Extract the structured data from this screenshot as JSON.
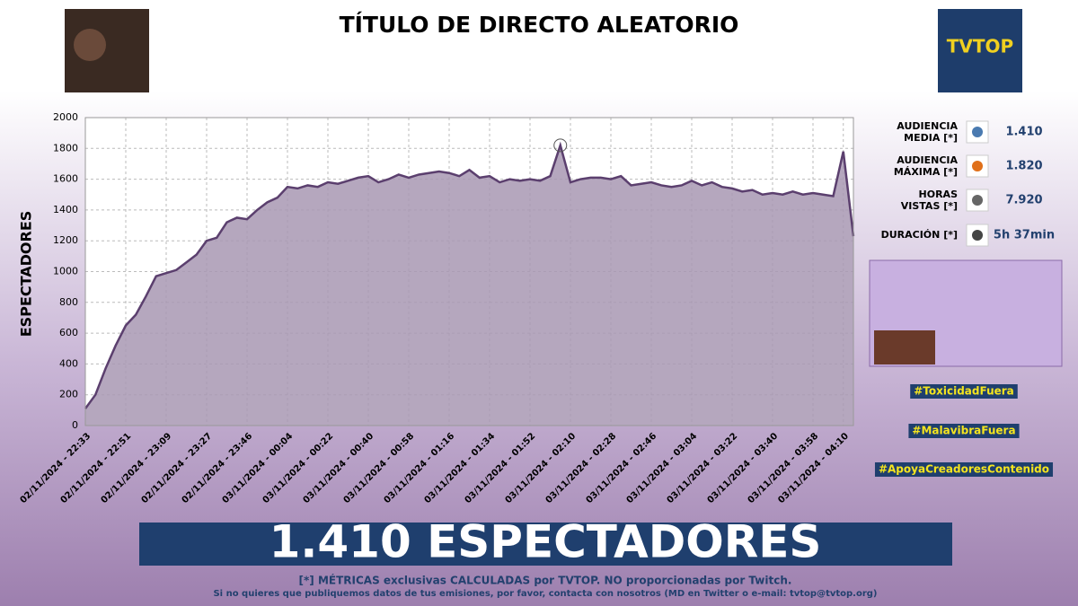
{
  "header": {
    "title": "TÍTULO DE DIRECTO ALEATORIO",
    "logo": "TVTOP"
  },
  "chart_data": {
    "type": "area",
    "ylabel": "ESPECTADORES",
    "categories": [
      "02/11/2024 - 22:33",
      null,
      null,
      null,
      "02/11/2024 - 22:51",
      null,
      null,
      null,
      "02/11/2024 - 23:09",
      null,
      null,
      null,
      "02/11/2024 - 23:27",
      null,
      null,
      null,
      "02/11/2024 - 23:46",
      null,
      null,
      null,
      "03/11/2024 - 00:04",
      null,
      null,
      null,
      "03/11/2024 - 00:22",
      null,
      null,
      null,
      "03/11/2024 - 00:40",
      null,
      null,
      null,
      "03/11/2024 - 00:58",
      null,
      null,
      null,
      "03/11/2024 - 01:16",
      null,
      null,
      null,
      "03/11/2024 - 01:34",
      null,
      null,
      null,
      "03/11/2024 - 01:52",
      null,
      null,
      null,
      "03/11/2024 - 02:10",
      null,
      null,
      null,
      "03/11/2024 - 02:28",
      null,
      null,
      null,
      "03/11/2024 - 02:46",
      null,
      null,
      null,
      "03/11/2024 - 03:04",
      null,
      null,
      null,
      "03/11/2024 - 03:22",
      null,
      null,
      null,
      "03/11/2024 - 03:40",
      null,
      null,
      null,
      "03/11/2024 - 03:58",
      null,
      null,
      "03/11/2024 - 04:10",
      null
    ],
    "values": [
      110,
      200,
      370,
      520,
      650,
      720,
      840,
      970,
      990,
      1010,
      1060,
      1110,
      1200,
      1220,
      1320,
      1350,
      1340,
      1400,
      1450,
      1480,
      1550,
      1540,
      1560,
      1550,
      1580,
      1570,
      1590,
      1610,
      1620,
      1580,
      1600,
      1630,
      1610,
      1630,
      1640,
      1650,
      1640,
      1620,
      1660,
      1610,
      1620,
      1580,
      1600,
      1590,
      1600,
      1590,
      1620,
      1820,
      1580,
      1600,
      1610,
      1610,
      1600,
      1620,
      1560,
      1570,
      1580,
      1560,
      1550,
      1560,
      1590,
      1560,
      1580,
      1550,
      1540,
      1520,
      1530,
      1500,
      1510,
      1500,
      1520,
      1500,
      1510,
      1500,
      1490,
      1780,
      1230
    ],
    "color": "#5b3f6e",
    "fill_color": "#a898b3",
    "ylim": [
      0,
      2000
    ],
    "yticks": [
      0,
      200,
      400,
      600,
      800,
      1000,
      1200,
      1400,
      1600,
      1800,
      2000
    ],
    "grid": true
  },
  "stats": [
    {
      "label": "AUDIENCIA MEDIA [*]",
      "value": "1.410"
    },
    {
      "label": "AUDIENCIA MÁXIMA [*]",
      "value": "1.820"
    },
    {
      "label": "HORAS VISTAS [*]",
      "value": "7.920"
    },
    {
      "label": "DURACIÓN [*]",
      "value": "5h 37min"
    }
  ],
  "hashtags": [
    "#ToxicidadFuera",
    "#MalavibraFuera",
    "#ApoyaCreadoresContenido"
  ],
  "banner": "1.410 ESPECTADORES",
  "footer": [
    "[*] MÉTRICAS exclusivas CALCULADAS por TVTOP. NO proporcionadas por Twitch.",
    "Si no quieres que publiquemos datos de tus emisiones, por favor, contacta con nosotros (MD en Twitter o e-mail: tvtop@tvtop.org)"
  ]
}
